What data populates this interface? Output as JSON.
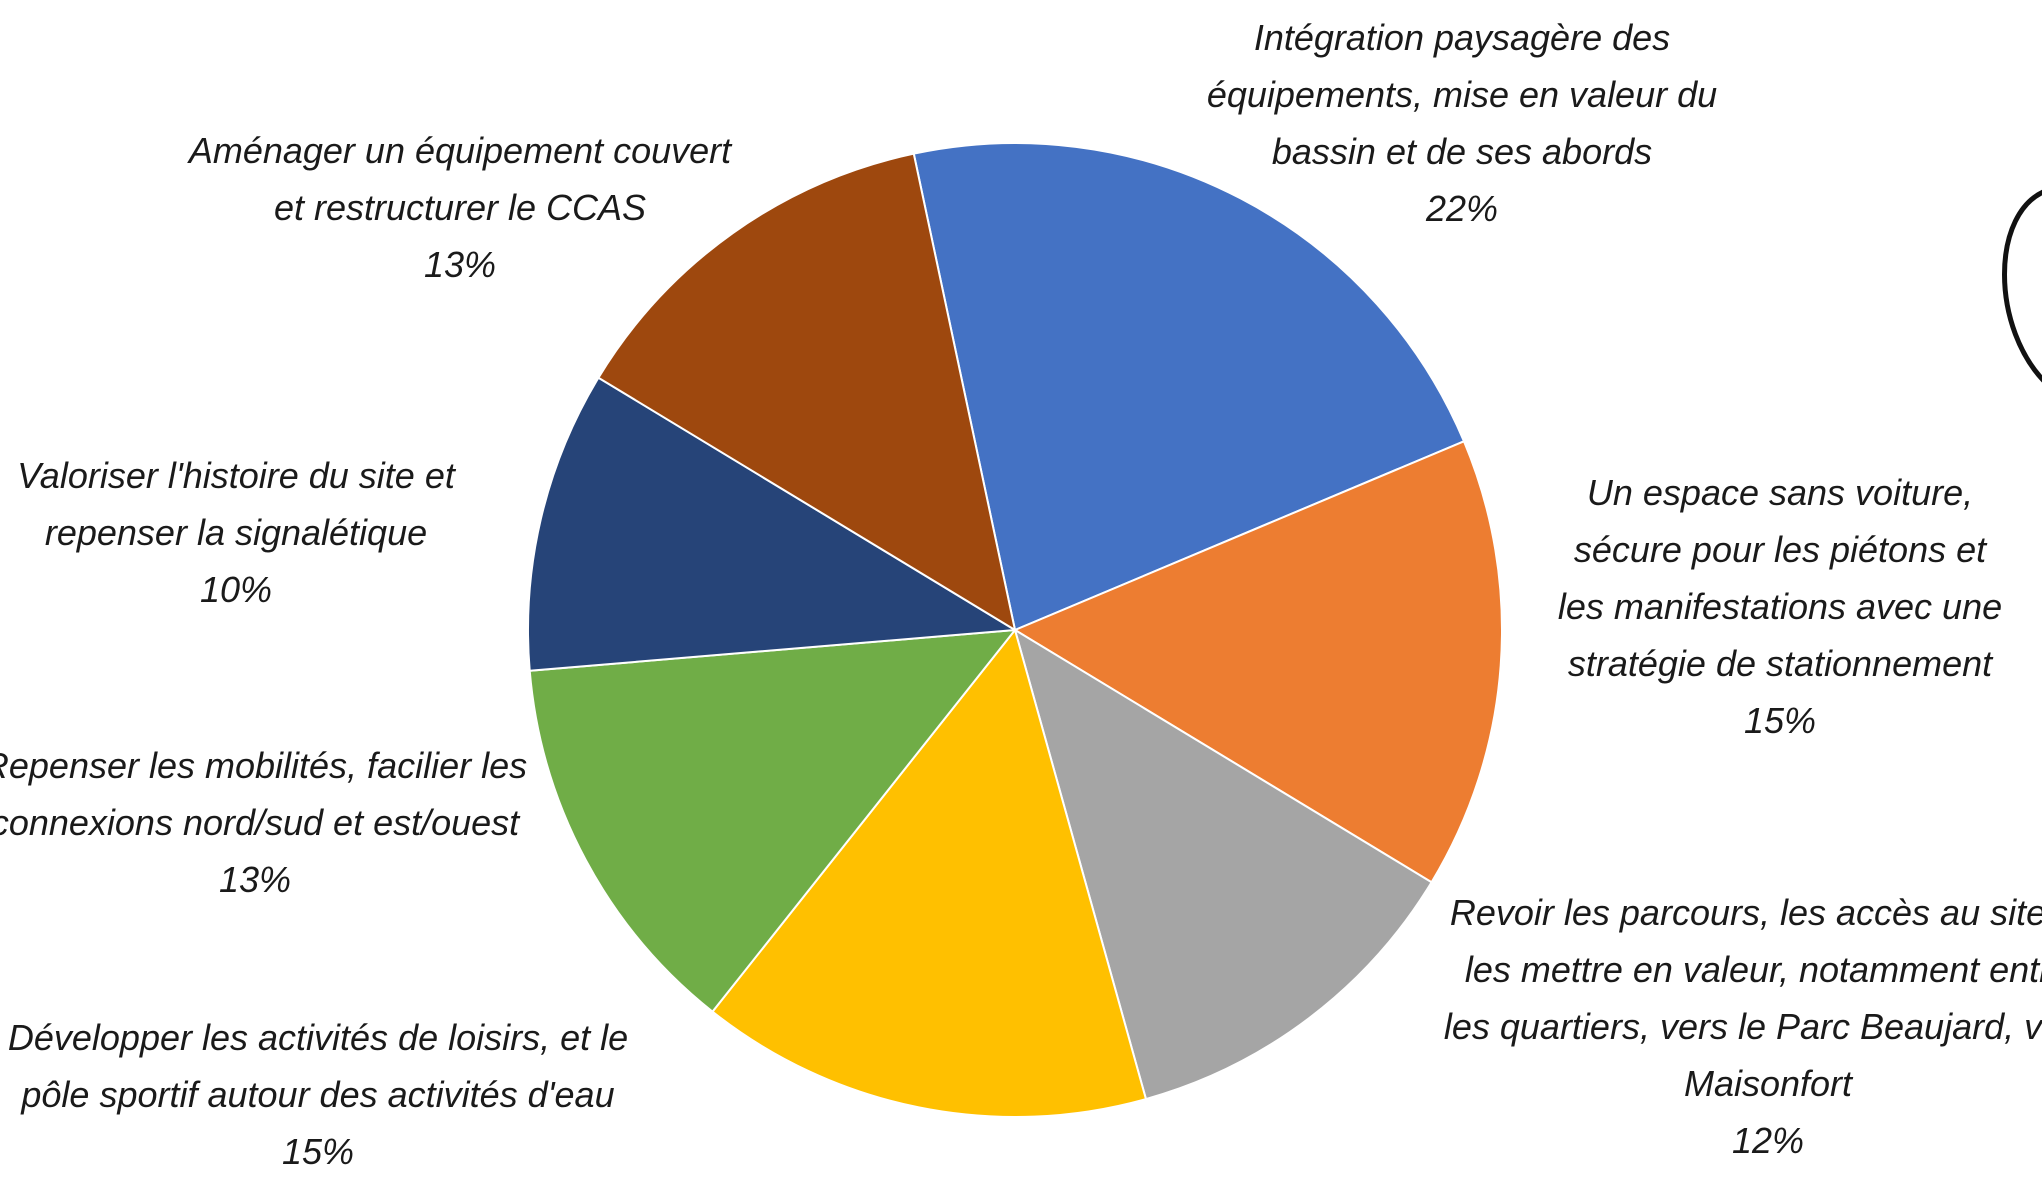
{
  "chart_data": {
    "type": "pie",
    "start_angle_deg": -12,
    "direction": "clockwise",
    "slices": [
      {
        "label_lines": [
          "Intégration paysagère des",
          "équipements, mise en valeur du",
          "bassin et de ses abords"
        ],
        "value": 22,
        "percent_label": "22%",
        "color": "#4472C4"
      },
      {
        "label_lines": [
          "Un espace sans voiture,",
          "sécure pour les piétons et",
          "les manifestations avec une",
          "stratégie de stationnement"
        ],
        "value": 15,
        "percent_label": "15%",
        "color": "#ED7D31"
      },
      {
        "label_lines": [
          "Revoir les parcours, les accès au site et",
          "les mettre en valeur, notamment entre",
          "les quartiers, vers le Parc Beaujard, vers",
          "Maisonfort"
        ],
        "value": 12,
        "percent_label": "12%",
        "color": "#A5A5A5"
      },
      {
        "label_lines": [
          "Développer les activités de loisirs, et le",
          "pôle sportif autour des activités d'eau"
        ],
        "value": 15,
        "percent_label": "15%",
        "color": "#FFC000"
      },
      {
        "label_lines": [
          "Repenser les mobilités, facilier les",
          "connexions nord/sud et est/ouest"
        ],
        "value": 13,
        "percent_label": "13%",
        "color": "#70AD47"
      },
      {
        "label_lines": [
          "Valoriser l'histoire du site et",
          "repenser la signalétique"
        ],
        "value": 10,
        "percent_label": "10%",
        "color": "#264478"
      },
      {
        "label_lines": [
          "Aménager un équipement couvert",
          "et restructurer le CCAS"
        ],
        "value": 13,
        "percent_label": "13%",
        "color": "#9E480E"
      }
    ]
  }
}
